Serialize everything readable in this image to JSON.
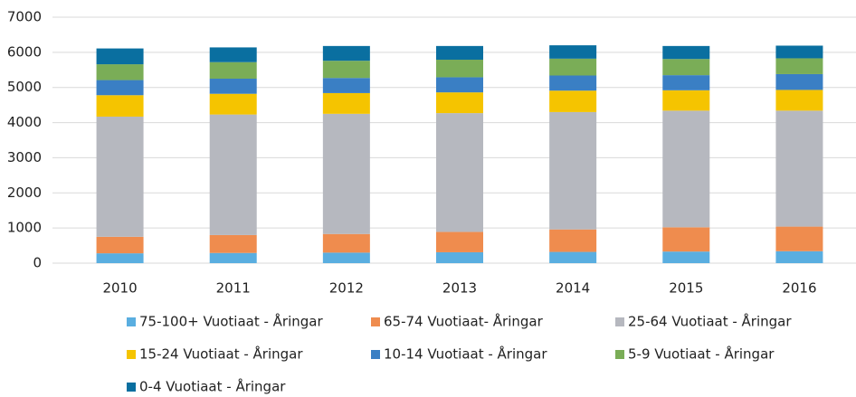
{
  "chart_data": {
    "type": "stacked_bar",
    "categories": [
      "2010",
      "2011",
      "2012",
      "2013",
      "2014",
      "2015",
      "2016"
    ],
    "series": [
      {
        "name": "75-100+ Vuotiaat - Åringar",
        "color": "#5aaee0",
        "values": [
          280,
          290,
          300,
          310,
          320,
          330,
          340
        ]
      },
      {
        "name": "65-74 Vuotiaat- Åringar",
        "color": "#ef8c4e",
        "values": [
          470,
          510,
          530,
          580,
          640,
          690,
          700
        ]
      },
      {
        "name": "25-64 Vuotiaat - Åringar",
        "color": "#b6b8bf",
        "values": [
          3420,
          3430,
          3420,
          3380,
          3340,
          3320,
          3300
        ]
      },
      {
        "name": "15-24 Vuotiaat - Åringar",
        "color": "#f5c400",
        "values": [
          610,
          590,
          590,
          590,
          610,
          580,
          590
        ]
      },
      {
        "name": "10-14 Vuotiaat - Åringar",
        "color": "#3a7fc4",
        "values": [
          430,
          430,
          430,
          430,
          430,
          430,
          450
        ]
      },
      {
        "name": "5-9 Vuotiaat - Åringar",
        "color": "#7aad57",
        "values": [
          450,
          470,
          490,
          500,
          480,
          460,
          450
        ]
      },
      {
        "name": "0-4 Vuotiaat - Åringar",
        "color": "#0a6fa0",
        "values": [
          450,
          420,
          420,
          390,
          380,
          370,
          360
        ]
      }
    ],
    "ylim": [
      0,
      7000
    ],
    "yticks": [
      0,
      1000,
      2000,
      3000,
      4000,
      5000,
      6000,
      7000
    ],
    "grid": true
  }
}
